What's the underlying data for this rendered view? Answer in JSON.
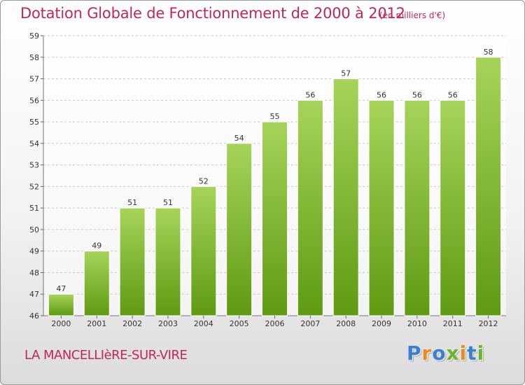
{
  "header": {
    "title": "Dotation Globale de Fonctionnement de 2000 à 2012",
    "subtitle": "(en milliers d'€)"
  },
  "footer": {
    "commune": "LA MANCELLIèRE-SUR-VIRE",
    "logo_text": "Proxiti",
    "logo_letters": [
      {
        "char": "P",
        "color": "#3a7fd0"
      },
      {
        "char": "r",
        "color": "#f08a1c"
      },
      {
        "char": "o",
        "color": "#3a7fd0"
      },
      {
        "char": "x",
        "color": "#6ab42e"
      },
      {
        "char": "i",
        "color": "#f08a1c"
      },
      {
        "char": "t",
        "color": "#3a7fd0"
      },
      {
        "char": "i",
        "color": "#6ab42e"
      }
    ]
  },
  "colors": {
    "title": "#c0265a",
    "bar_top": "#a6d45a",
    "bar_bottom": "#5f9a12",
    "grid": "#c8c8c8",
    "axis_text": "#333333"
  },
  "chart_data": {
    "type": "bar",
    "categories": [
      "2000",
      "2001",
      "2002",
      "2003",
      "2004",
      "2005",
      "2006",
      "2007",
      "2008",
      "2009",
      "2010",
      "2011",
      "2012"
    ],
    "values": [
      47,
      49,
      51,
      51,
      52,
      54,
      55,
      56,
      57,
      56,
      56,
      56,
      58
    ],
    "ylim": [
      46,
      59
    ],
    "yticks": [
      46,
      47,
      48,
      49,
      50,
      51,
      52,
      53,
      54,
      55,
      56,
      57,
      58,
      59
    ],
    "grid": true,
    "data_labels": true
  }
}
